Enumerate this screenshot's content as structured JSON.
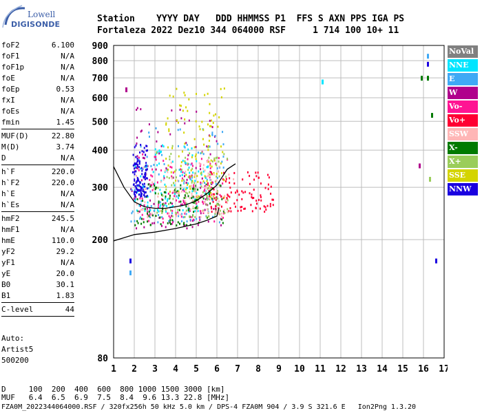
{
  "logo": {
    "line1": "Lowell",
    "line2": "DIGISONDE"
  },
  "header": {
    "row1": "Station    YYYY DAY   DDD HHMMSS P1  FFS S AXN PPS IGA PS",
    "row2": "Fortaleza 2022 Dez10 344 064000 RSF     1 714 100 10+ 11"
  },
  "params": [
    {
      "k": "foF2",
      "v": "6.100"
    },
    {
      "k": "foF1",
      "v": "N/A"
    },
    {
      "k": "foF1p",
      "v": "N/A"
    },
    {
      "k": "foE",
      "v": "N/A"
    },
    {
      "k": "foEp",
      "v": "0.53"
    },
    {
      "k": "fxI",
      "v": "N/A"
    },
    {
      "k": "foEs",
      "v": "N/A"
    },
    {
      "k": "fmin",
      "v": "1.45"
    },
    {
      "sep": true
    },
    {
      "k": "MUF(D)",
      "v": "22.80"
    },
    {
      "k": "M(D)",
      "v": "3.74"
    },
    {
      "k": "D",
      "v": "N/A"
    },
    {
      "sep": true
    },
    {
      "k": "h`F",
      "v": "220.0"
    },
    {
      "k": "h`F2",
      "v": "220.0"
    },
    {
      "k": "h`E",
      "v": "N/A"
    },
    {
      "k": "h`Es",
      "v": "N/A"
    },
    {
      "sep": true
    },
    {
      "k": "hmF2",
      "v": "245.5"
    },
    {
      "k": "hmF1",
      "v": "N/A"
    },
    {
      "k": "hmE",
      "v": "110.0"
    },
    {
      "k": "yF2",
      "v": "29.2"
    },
    {
      "k": "yF1",
      "v": "N/A"
    },
    {
      "k": "yE",
      "v": "20.0"
    },
    {
      "k": "B0",
      "v": "30.1"
    },
    {
      "k": "B1",
      "v": "1.83"
    },
    {
      "sep": true
    },
    {
      "k": "C-level",
      "v": "44"
    },
    {
      "sep": true
    }
  ],
  "extra": {
    "auto": "Auto:",
    "artist": "Artist5",
    "code": "500200"
  },
  "legend": [
    {
      "label": "NoVal",
      "bg": "#808080",
      "fg": "#ffffff"
    },
    {
      "label": "NNE",
      "bg": "#00e5ff",
      "fg": "#ffffff"
    },
    {
      "label": "E",
      "bg": "#3fa9f5",
      "fg": "#ffffff"
    },
    {
      "label": "W",
      "bg": "#b0008c",
      "fg": "#ffffff"
    },
    {
      "label": "Vo-",
      "bg": "#ff1493",
      "fg": "#ffffff"
    },
    {
      "label": "Vo+",
      "bg": "#ff0033",
      "fg": "#ffffff"
    },
    {
      "label": "SSW",
      "bg": "#ffb6b6",
      "fg": "#ffffff"
    },
    {
      "label": "X-",
      "bg": "#007a00",
      "fg": "#ffffff"
    },
    {
      "label": "X+",
      "bg": "#9acd5a",
      "fg": "#ffffff"
    },
    {
      "label": "SSE",
      "bg": "#d4d400",
      "fg": "#ffffff"
    },
    {
      "label": "NNW",
      "bg": "#1a00e0",
      "fg": "#ffffff"
    }
  ],
  "footer": {
    "row1": "D     100  200  400  600  800 1000 1500 3000 [km]",
    "row2": "MUF   6.4  6.5  6.9  7.5  8.4  9.6 13.3 22.8 [MHz]",
    "row3": "FZA0M_2022344064000.RSF / 320fx256h 50 kHz 5.0 km / DPS-4 FZA0M 904 / 3.9 S 321.6 E   Ion2Png 1.3.20"
  },
  "chart_data": {
    "type": "scatter",
    "title": "",
    "xlabel": "",
    "ylabel": "",
    "xlim": [
      1,
      17
    ],
    "ylim": [
      80,
      900
    ],
    "y_scale": "log",
    "x_ticks": [
      1,
      2,
      3,
      4,
      5,
      6,
      7,
      8,
      9,
      10,
      11,
      12,
      13,
      14,
      15,
      16,
      17
    ],
    "y_ticks": [
      80,
      200,
      300,
      400,
      500,
      600,
      700,
      800,
      900
    ],
    "grid": true,
    "legend": "right",
    "trace_upper": {
      "x": [
        1.0,
        1.5,
        2.0,
        2.5,
        3.0,
        3.5,
        4.0,
        4.5,
        5.0,
        5.5,
        6.0,
        6.5,
        6.9
      ],
      "y": [
        352,
        300,
        268,
        258,
        255,
        255,
        258,
        262,
        270,
        285,
        305,
        345,
        360
      ]
    },
    "trace_lower": {
      "x": [
        1.0,
        2.0,
        3.0,
        4.0,
        5.0,
        5.5,
        6.0,
        6.1
      ],
      "y": [
        198,
        208,
        212,
        218,
        226,
        232,
        240,
        255
      ]
    },
    "echo_regions": [
      {
        "series": "W",
        "x": [
          1.8,
          6.2
        ],
        "y": [
          220,
          560
        ]
      },
      {
        "series": "E",
        "x": [
          1.8,
          6.3
        ],
        "y": [
          230,
          480
        ]
      },
      {
        "series": "NNE",
        "x": [
          2.0,
          5.8
        ],
        "y": [
          250,
          420
        ]
      },
      {
        "series": "Vo-",
        "x": [
          2.0,
          6.5
        ],
        "y": [
          230,
          400
        ]
      },
      {
        "series": "Vo+",
        "x": [
          5.5,
          8.7
        ],
        "y": [
          250,
          340
        ]
      },
      {
        "series": "SSE",
        "x": [
          3.5,
          6.4
        ],
        "y": [
          280,
          650
        ]
      },
      {
        "series": "X-",
        "x": [
          2.0,
          6.3
        ],
        "y": [
          225,
          310
        ]
      },
      {
        "series": "X+",
        "x": [
          3.0,
          6.5
        ],
        "y": [
          240,
          420
        ]
      },
      {
        "series": "SSW",
        "x": [
          2.0,
          6.8
        ],
        "y": [
          240,
          380
        ]
      },
      {
        "series": "NNW",
        "x": [
          1.9,
          2.6
        ],
        "y": [
          280,
          420
        ]
      }
    ],
    "echo_points": [
      {
        "series": "W",
        "x": 1.6,
        "y": 640
      },
      {
        "series": "NNE",
        "x": 11.1,
        "y": 680
      },
      {
        "series": "E",
        "x": 16.2,
        "y": 830
      },
      {
        "series": "NNW",
        "x": 16.2,
        "y": 780
      },
      {
        "series": "X-",
        "x": 16.2,
        "y": 700
      },
      {
        "series": "X-",
        "x": 15.9,
        "y": 700
      },
      {
        "series": "X-",
        "x": 16.4,
        "y": 525
      },
      {
        "series": "W",
        "x": 15.8,
        "y": 355
      },
      {
        "series": "X+",
        "x": 16.3,
        "y": 320
      },
      {
        "series": "NNW",
        "x": 16.6,
        "y": 170
      },
      {
        "series": "NNW",
        "x": 1.8,
        "y": 170
      },
      {
        "series": "E",
        "x": 1.8,
        "y": 155
      }
    ]
  }
}
